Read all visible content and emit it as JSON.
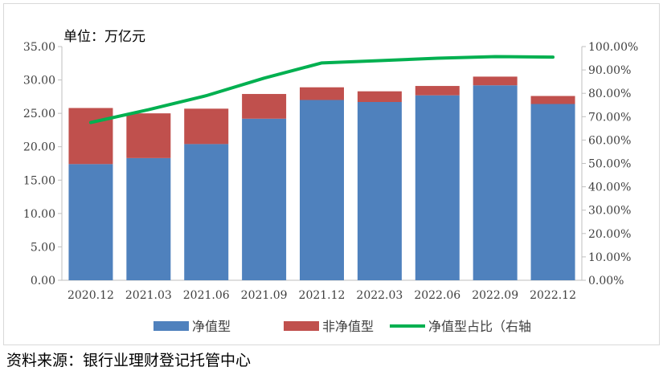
{
  "chart_data": {
    "type": "bar",
    "stacked": true,
    "unit_label": "单位：万亿元",
    "categories": [
      "2020.12",
      "2021.03",
      "2021.06",
      "2021.09",
      "2021.12",
      "2022.03",
      "2022.06",
      "2022.09",
      "2022.12"
    ],
    "series": [
      {
        "name": "净值型",
        "kind": "bar",
        "axis": "left",
        "color": "#4f81bd",
        "values": [
          17.4,
          18.3,
          20.4,
          24.2,
          27.0,
          26.7,
          27.7,
          29.2,
          26.4
        ]
      },
      {
        "name": "非净值型",
        "kind": "bar",
        "axis": "left",
        "color": "#c0504d",
        "values": [
          8.4,
          6.7,
          5.3,
          3.7,
          1.9,
          1.6,
          1.4,
          1.3,
          1.2
        ]
      },
      {
        "name": "净值型占比（右轴",
        "kind": "line",
        "axis": "right",
        "color": "#00b050",
        "values": [
          67.5,
          73.0,
          79.0,
          86.5,
          93.0,
          94.0,
          95.0,
          95.7,
          95.5
        ]
      }
    ],
    "y_left": {
      "min": 0,
      "max": 35,
      "step": 5,
      "ticks": [
        "0.00",
        "5.00",
        "10.00",
        "15.00",
        "20.00",
        "25.00",
        "30.00",
        "35.00"
      ]
    },
    "y_right": {
      "min": 0,
      "max": 100,
      "step": 10,
      "ticks": [
        "0.00%",
        "10.00%",
        "20.00%",
        "30.00%",
        "40.00%",
        "50.00%",
        "60.00%",
        "70.00%",
        "80.00%",
        "90.00%",
        "100.00%"
      ]
    },
    "grid": false,
    "legend_position": "bottom"
  },
  "source_note": "资料来源：银行业理财登记托管中心"
}
